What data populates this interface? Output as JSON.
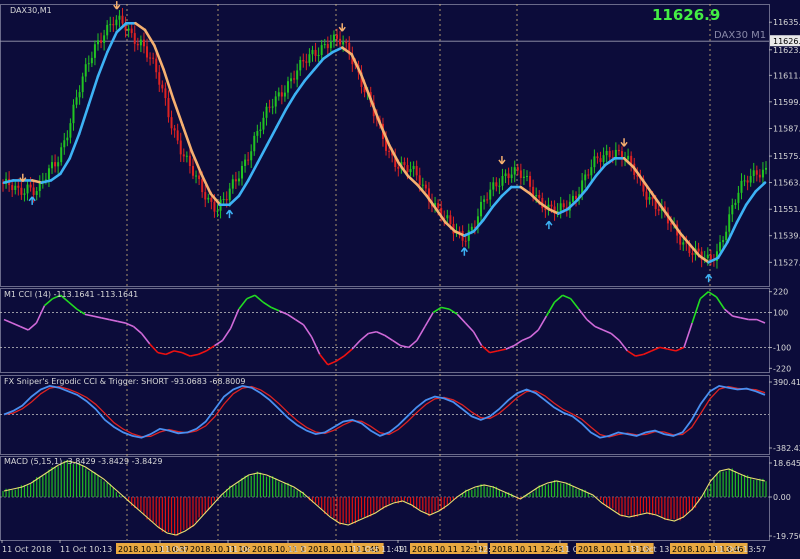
{
  "chart_data": {
    "type": "line",
    "symbol_label": "DAX30,M1",
    "watermark": "DAX30 M1",
    "last_price": "11626.9",
    "price_axis_ticks": [
      "11635.5",
      "11623.0",
      "11611.5",
      "11599.5",
      "11587.5",
      "11575.0",
      "11563.0",
      "11551.0",
      "11539.0",
      "11527.0"
    ],
    "price_range": [
      11519,
      11641
    ],
    "price_series": [
      {
        "name": "price",
        "values": [
          11563,
          11561,
          11558,
          11562,
          11560,
          11566,
          11572,
          11585,
          11600,
          11612,
          11624,
          11632,
          11636,
          11634,
          11629,
          11627,
          11618,
          11606,
          11592,
          11580,
          11570,
          11562,
          11556,
          11552,
          11556,
          11564,
          11574,
          11584,
          11592,
          11600,
          11606,
          11611,
          11616,
          11621,
          11625,
          11627,
          11626,
          11622,
          11612,
          11600,
          11588,
          11578,
          11572,
          11569,
          11566,
          11560,
          11553,
          11546,
          11541,
          11539,
          11543,
          11552,
          11560,
          11566,
          11568,
          11566,
          11562,
          11556,
          11551,
          11549,
          11553,
          11559,
          11566,
          11572,
          11576,
          11578,
          11574,
          11568,
          11561,
          11555,
          11549,
          11543,
          11538,
          11533,
          11529,
          11527,
          11534,
          11546,
          11557,
          11565,
          11569,
          11568
        ]
      },
      {
        "name": "moving-average",
        "values": [
          11563,
          11564,
          11564,
          11564,
          11563,
          11564,
          11567,
          11574,
          11585,
          11598,
          11611,
          11622,
          11631,
          11635,
          11635,
          11632,
          11625,
          11614,
          11601,
          11589,
          11577,
          11567,
          11558,
          11553,
          11553,
          11557,
          11564,
          11572,
          11580,
          11588,
          11596,
          11603,
          11609,
          11614,
          11619,
          11622,
          11624,
          11621,
          11612,
          11601,
          11590,
          11580,
          11572,
          11566,
          11562,
          11557,
          11551,
          11545,
          11541,
          11539,
          11541,
          11546,
          11552,
          11557,
          11561,
          11561,
          11558,
          11554,
          11551,
          11549,
          11551,
          11555,
          11560,
          11566,
          11571,
          11574,
          11574,
          11570,
          11564,
          11558,
          11552,
          11546,
          11540,
          11535,
          11530,
          11527,
          11529,
          11536,
          11545,
          11553,
          11559,
          11563
        ]
      }
    ],
    "buy_arrow_indices": [
      3,
      24,
      49,
      58,
      75
    ],
    "sell_arrow_indices": [
      2,
      12,
      36,
      53,
      66
    ],
    "cci": {
      "label": "M1 CCI (14) -113.1641 -113.1641",
      "axis_ticks": [
        "220",
        "100",
        "-100",
        "-220"
      ],
      "range": [
        -230,
        230
      ],
      "levels": [
        100,
        -100
      ],
      "values": [
        60,
        40,
        20,
        0,
        40,
        140,
        180,
        200,
        160,
        120,
        90,
        80,
        70,
        60,
        50,
        40,
        20,
        -20,
        -80,
        -130,
        -140,
        -120,
        -130,
        -150,
        -140,
        -120,
        -90,
        -60,
        10,
        120,
        180,
        200,
        160,
        130,
        110,
        90,
        60,
        30,
        -40,
        -140,
        -200,
        -180,
        -150,
        -110,
        -60,
        -20,
        -10,
        -30,
        -60,
        -90,
        -100,
        -60,
        20,
        100,
        130,
        120,
        90,
        40,
        -10,
        -90,
        -130,
        -120,
        -110,
        -90,
        -60,
        -40,
        0,
        80,
        160,
        200,
        180,
        120,
        60,
        20,
        0,
        -20,
        -60,
        -120,
        -150,
        -140,
        -120,
        -100,
        -110,
        -120,
        -100,
        40,
        180,
        220,
        190,
        120,
        80,
        70,
        60,
        60,
        40
      ]
    },
    "ergodic": {
      "label": "FX Sniper's Ergodic CCI & Trigger: SHORT -93.0683 -68.8009",
      "axis_ticks": [
        "390.4153",
        "-382.4267"
      ],
      "range": [
        -420,
        420
      ],
      "cci_values": [
        0,
        40,
        100,
        200,
        280,
        320,
        300,
        260,
        220,
        150,
        60,
        -60,
        -140,
        -200,
        -240,
        -260,
        -220,
        -160,
        -180,
        -210,
        -200,
        -160,
        -80,
        60,
        200,
        280,
        320,
        300,
        240,
        160,
        60,
        -40,
        -120,
        -180,
        -220,
        -200,
        -140,
        -80,
        -60,
        -100,
        -180,
        -240,
        -200,
        -120,
        -20,
        80,
        160,
        200,
        180,
        140,
        60,
        -20,
        -60,
        -20,
        60,
        160,
        240,
        280,
        240,
        160,
        80,
        20,
        -20,
        -100,
        -200,
        -260,
        -240,
        -200,
        -220,
        -240,
        -200,
        -180,
        -220,
        -240,
        -200,
        -60,
        120,
        260,
        320,
        300,
        280,
        290,
        260,
        220
      ]
    },
    "macd": {
      "label": "MACD (5,15,1) -3.8429 -3.8429 -3.8429",
      "axis_ticks": [
        "18.645",
        "0.00",
        "-19.7503"
      ],
      "range": [
        -20.5,
        19.5
      ],
      "values": [
        3,
        4,
        5,
        7,
        10,
        13,
        16,
        18,
        17,
        15,
        12,
        9,
        5,
        1,
        -3,
        -7,
        -11,
        -15,
        -18,
        -19,
        -17,
        -14,
        -9,
        -4,
        1,
        5,
        8,
        11,
        12,
        11,
        9,
        7,
        5,
        2,
        -2,
        -6,
        -10,
        -13,
        -14,
        -12,
        -10,
        -8,
        -5,
        -3,
        -2,
        -4,
        -7,
        -9,
        -7,
        -4,
        0,
        3,
        5,
        6,
        5,
        3,
        1,
        -1,
        2,
        5,
        7,
        8,
        7,
        5,
        3,
        1,
        -3,
        -6,
        -9,
        -10,
        -9,
        -8,
        -9,
        -11,
        -12,
        -10,
        -6,
        0,
        8,
        13,
        14,
        12,
        10,
        9,
        8
      ]
    },
    "time_labels": [
      "11 Oct 2018",
      "11 Oct 10:13",
      "2018.10.11 10:37",
      "11 Oct 10:49",
      "2018.10.11 10:53",
      "11 Oct 11:0",
      "2018.10.11 11:08",
      "11 Oct 11:17",
      "2018.10.11 11:45",
      "11 Oct 11:49",
      "11 Oct 1",
      "2018.10.11 12:19",
      "12:3",
      "2018.10.11 12:43",
      "11 Oct 12",
      "2018.10.11 13:13",
      "11 Oct 13:",
      "2018.10.11 13:46",
      "11 Oct 13:57"
    ],
    "colors": {
      "background": "#0c0c3a",
      "bull_candle": "#22c422",
      "bear_candle": "#dd2222",
      "ma_up": "#3db2f5",
      "ma_down": "#f5b070",
      "cci_mid": "#d06ad9",
      "cci_high": "#22dd22",
      "cci_low": "#ee1111",
      "ergodic_cci": "#4a8ff0",
      "ergodic_trigger": "#dd2222",
      "macd_pos": "#22bb22",
      "macd_neg": "#dd1111",
      "macd_signal": "#e8e070",
      "last_price_text": "#44ee44",
      "marker_line": "#e8c880"
    }
  }
}
